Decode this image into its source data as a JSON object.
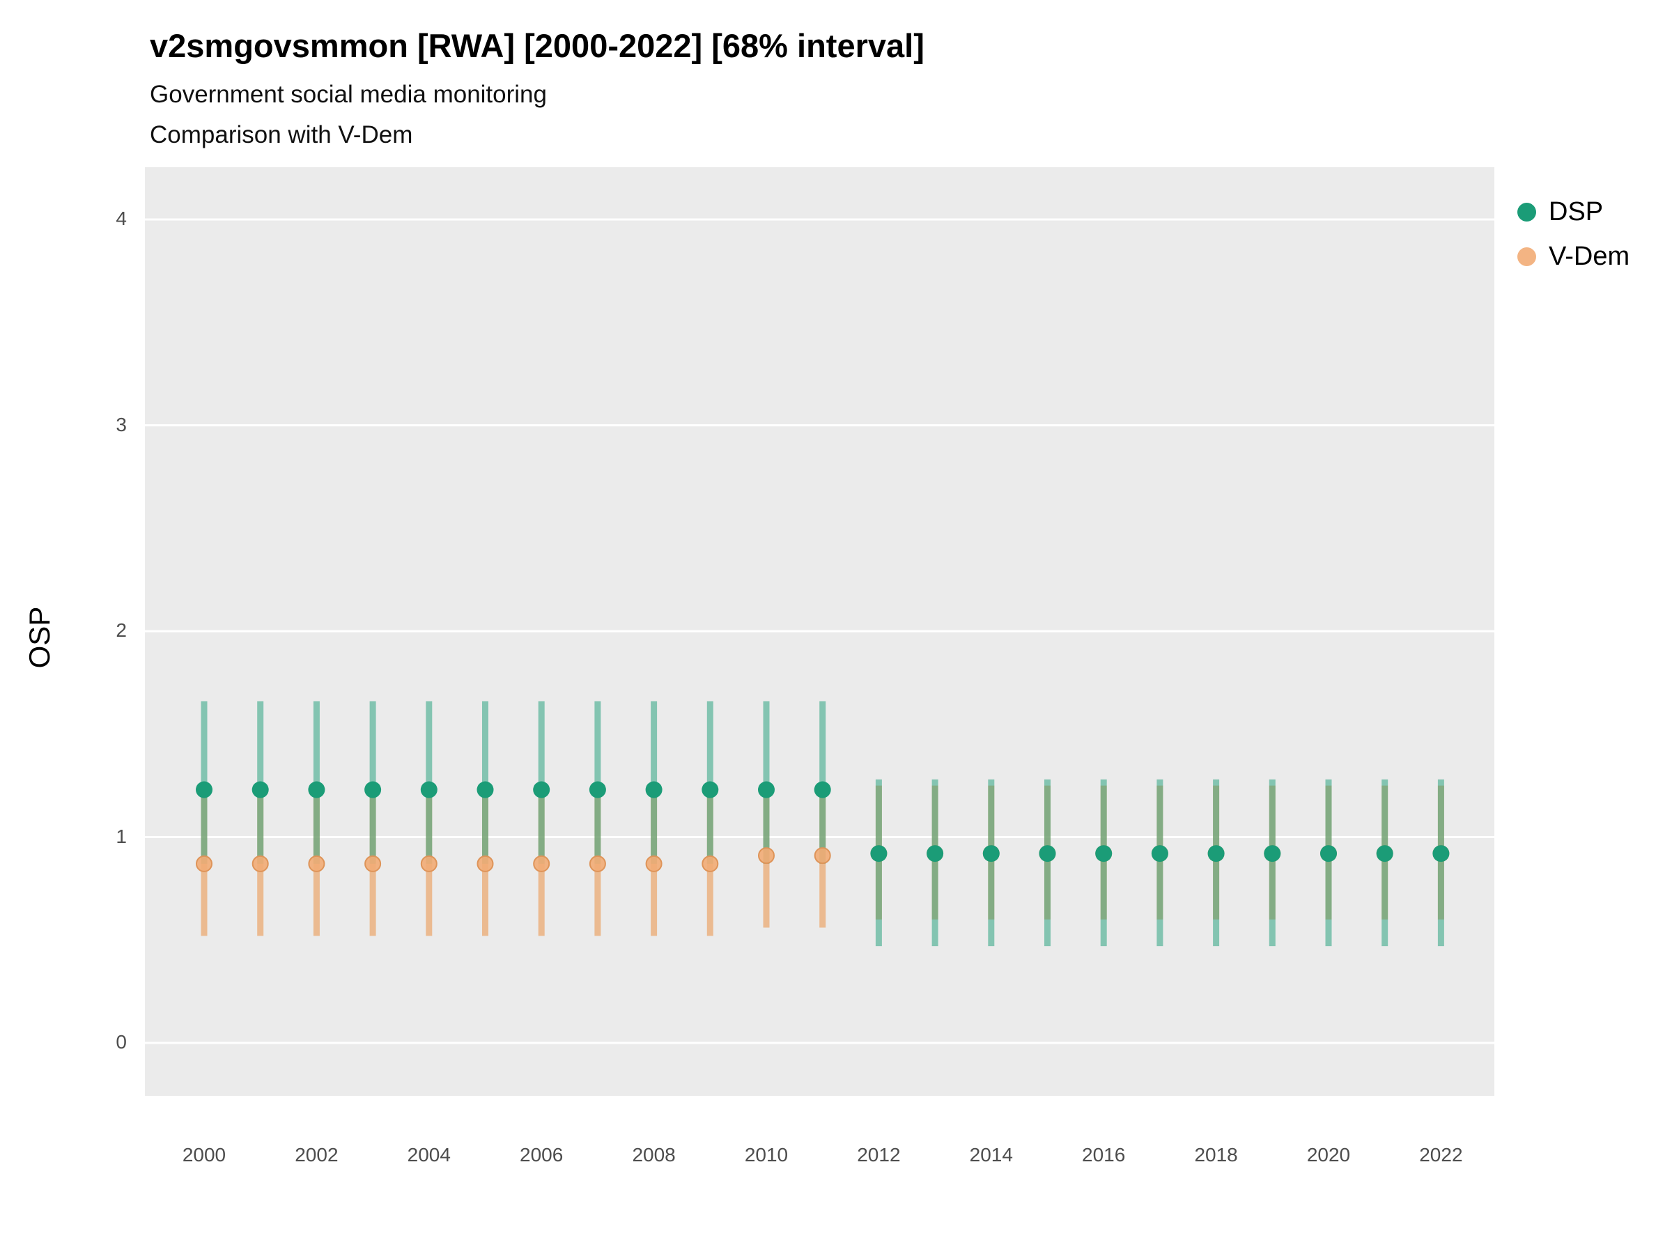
{
  "title": "v2smgovsmmon [RWA] [2000-2022] [68% interval]",
  "subtitle1": "Government social media monitoring",
  "subtitle2": "Comparison with V-Dem",
  "ylabel": "OSP",
  "legend": {
    "items": [
      {
        "label": "DSP",
        "color": "#1B9C77",
        "opacity": 1
      },
      {
        "label": "V-Dem",
        "color": "#F2AC76",
        "opacity": 0.9
      }
    ]
  },
  "chart_data": {
    "type": "pointrange",
    "title": "v2smgovsmmon [RWA] [2000-2022] [68% interval]",
    "xlabel": "",
    "ylabel": "OSP",
    "ylim": [
      -0.26,
      4.25
    ],
    "yticks": [
      0,
      1,
      2,
      3,
      4
    ],
    "xticks": [
      2000,
      2002,
      2004,
      2006,
      2008,
      2010,
      2012,
      2014,
      2016,
      2018,
      2020,
      2022
    ],
    "grid": "major-horizontal-white-on-gray",
    "legend_position": "right",
    "x": [
      2000,
      2001,
      2002,
      2003,
      2004,
      2005,
      2006,
      2007,
      2008,
      2009,
      2010,
      2011,
      2012,
      2013,
      2014,
      2015,
      2016,
      2017,
      2018,
      2019,
      2020,
      2021,
      2022
    ],
    "series": [
      {
        "name": "V-Dem",
        "point_color": "#F2AC76",
        "point_stroke": "#DE9459",
        "bar_color": "rgba(235,160,95,0.65)",
        "values": [
          0.87,
          0.87,
          0.87,
          0.87,
          0.87,
          0.87,
          0.87,
          0.87,
          0.87,
          0.87,
          0.91,
          0.91,
          0.92,
          0.92,
          0.92,
          0.92,
          0.92,
          0.92,
          0.92,
          0.92,
          0.92,
          0.92,
          0.92
        ],
        "lower": [
          0.52,
          0.52,
          0.52,
          0.52,
          0.52,
          0.52,
          0.52,
          0.52,
          0.52,
          0.52,
          0.56,
          0.56,
          0.6,
          0.6,
          0.6,
          0.6,
          0.6,
          0.6,
          0.6,
          0.6,
          0.6,
          0.6,
          0.6
        ],
        "upper": [
          1.22,
          1.22,
          1.22,
          1.22,
          1.22,
          1.22,
          1.22,
          1.22,
          1.22,
          1.22,
          1.25,
          1.25,
          1.25,
          1.25,
          1.25,
          1.25,
          1.25,
          1.25,
          1.25,
          1.25,
          1.25,
          1.25,
          1.25
        ]
      },
      {
        "name": "DSP",
        "point_color": "#1B9C77",
        "point_stroke": "none",
        "bar_color": "rgba(27,158,119,0.5)",
        "values": [
          1.23,
          1.23,
          1.23,
          1.23,
          1.23,
          1.23,
          1.23,
          1.23,
          1.23,
          1.23,
          1.23,
          1.23,
          0.92,
          0.92,
          0.92,
          0.92,
          0.92,
          0.92,
          0.92,
          0.92,
          0.92,
          0.92,
          0.92
        ],
        "lower": [
          0.87,
          0.87,
          0.87,
          0.87,
          0.87,
          0.87,
          0.87,
          0.87,
          0.87,
          0.87,
          0.87,
          0.87,
          0.47,
          0.47,
          0.47,
          0.47,
          0.47,
          0.47,
          0.47,
          0.47,
          0.47,
          0.47,
          0.47
        ],
        "upper": [
          1.66,
          1.66,
          1.66,
          1.66,
          1.66,
          1.66,
          1.66,
          1.66,
          1.66,
          1.66,
          1.66,
          1.66,
          1.28,
          1.28,
          1.28,
          1.28,
          1.28,
          1.28,
          1.28,
          1.28,
          1.28,
          1.28,
          1.28
        ]
      }
    ]
  }
}
